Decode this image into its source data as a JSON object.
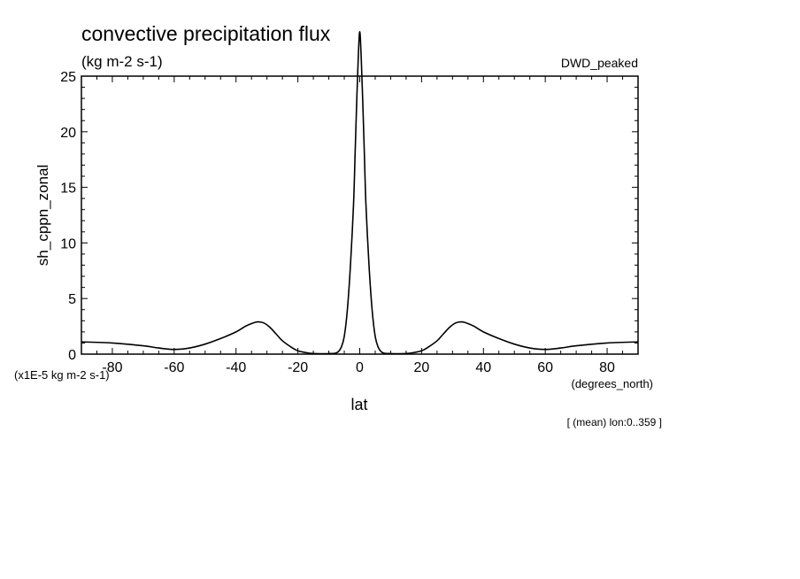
{
  "chart_data": {
    "type": "line",
    "title": "convective precipitation flux",
    "subtitle": "(kg m-2 s-1)",
    "dataset_label": "DWD_peaked",
    "xlabel": "lat",
    "x_units": "(degrees_north)",
    "ylabel": "sh_cppn_zonal",
    "y_units": "(x1E-5 kg m-2 s-1)",
    "footnote": "[ (mean) lon:0..359 ]",
    "xlim": [
      -90,
      90
    ],
    "ylim": [
      0,
      25
    ],
    "x_ticks": [
      -80,
      -60,
      -40,
      -20,
      0,
      20,
      40,
      60,
      80
    ],
    "x_tick_labels": [
      "-80",
      "-60",
      "-40",
      "-20",
      "0",
      "20",
      "40",
      "60",
      "80"
    ],
    "y_ticks": [
      0,
      5,
      10,
      15,
      20,
      25
    ],
    "y_tick_labels": [
      "0",
      "5",
      "10",
      "15",
      "20",
      "25"
    ],
    "grid": false,
    "series": [
      {
        "x": [
          -90,
          -80,
          -70,
          -65,
          -60,
          -55,
          -50,
          -45,
          -40,
          -37,
          -35,
          -33,
          -31,
          -29,
          -27,
          -25,
          -22,
          -20,
          -17,
          -15,
          -12,
          -10,
          -8,
          -7,
          -6,
          -5,
          -4,
          -3,
          -2,
          -1.5,
          -1,
          -0.5,
          0,
          0.5,
          1,
          1.5,
          2,
          3,
          4,
          5,
          6,
          7,
          8,
          10,
          12,
          15,
          17,
          20,
          22,
          25,
          27,
          29,
          31,
          33,
          35,
          37,
          40,
          45,
          50,
          55,
          60,
          65,
          70,
          80,
          90
        ],
        "y": [
          1.1,
          1.0,
          0.75,
          0.55,
          0.42,
          0.55,
          0.9,
          1.4,
          2.0,
          2.5,
          2.75,
          2.9,
          2.8,
          2.4,
          1.8,
          1.2,
          0.6,
          0.3,
          0.12,
          0.06,
          0.04,
          0.05,
          0.08,
          0.2,
          0.6,
          1.6,
          4.0,
          8.0,
          13.5,
          18.0,
          22.5,
          26.5,
          29.0,
          26.5,
          22.5,
          18.0,
          13.5,
          8.0,
          4.0,
          1.6,
          0.6,
          0.2,
          0.08,
          0.05,
          0.04,
          0.06,
          0.12,
          0.3,
          0.6,
          1.2,
          1.8,
          2.4,
          2.8,
          2.9,
          2.75,
          2.5,
          2.0,
          1.4,
          0.9,
          0.55,
          0.42,
          0.55,
          0.75,
          1.0,
          1.1
        ]
      }
    ]
  }
}
